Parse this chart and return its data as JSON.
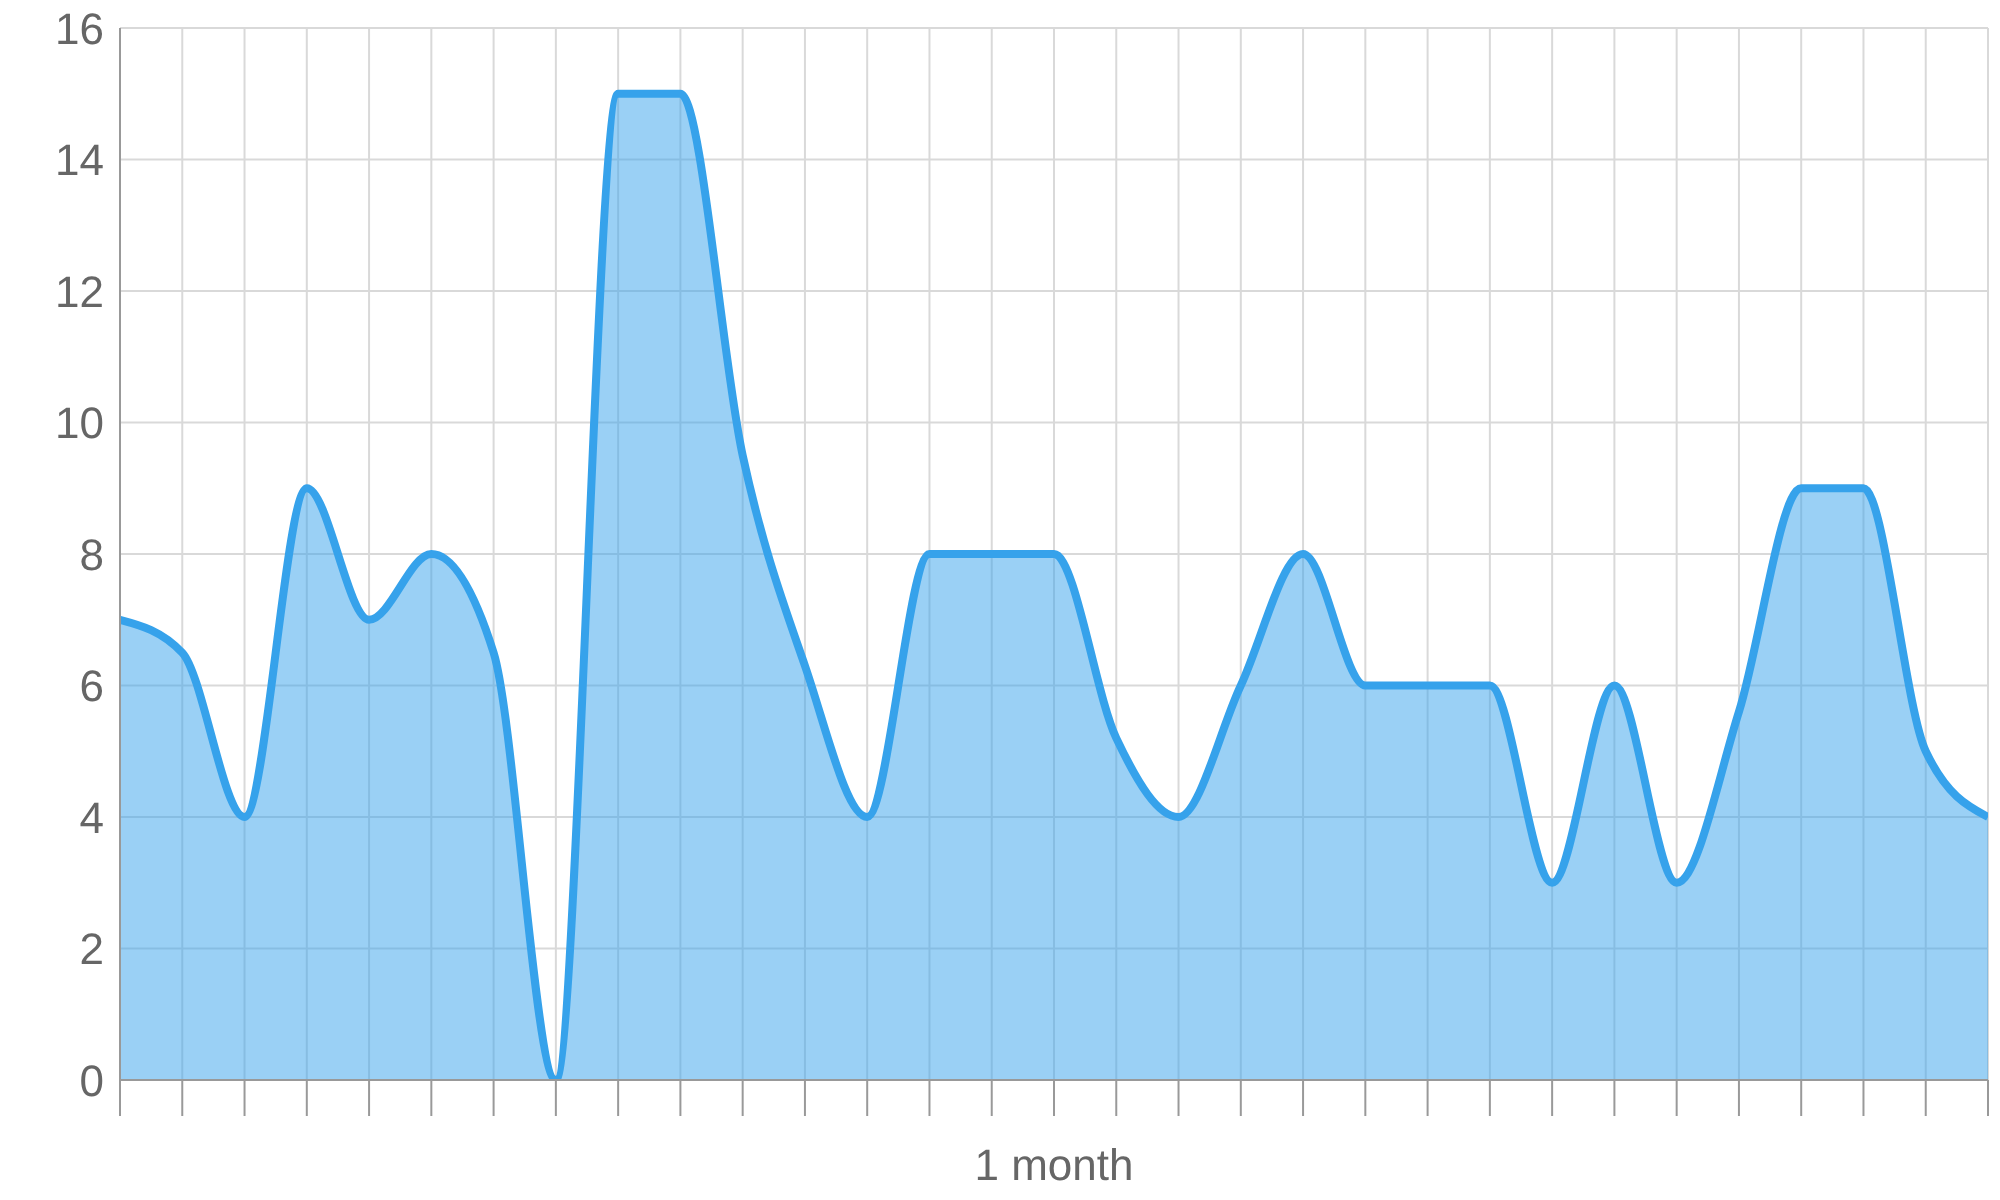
{
  "chart_data": {
    "type": "area",
    "xlabel": "1 month",
    "categories": [
      null,
      null,
      null,
      null,
      null,
      null,
      null,
      null,
      null,
      null,
      null,
      null,
      null,
      null,
      null,
      null,
      null,
      null,
      null,
      null,
      null,
      null,
      null,
      null,
      null,
      null,
      null,
      null,
      null,
      null,
      null
    ],
    "values": [
      7,
      6.5,
      4,
      9,
      7,
      8,
      6.5,
      0,
      15,
      15,
      9.5,
      6.3,
      4,
      8,
      8,
      8,
      5.2,
      4,
      6,
      8,
      6,
      6,
      6,
      3,
      6,
      3,
      5.6,
      9,
      9,
      5,
      4
    ],
    "color": "#36a2eb",
    "ylim": [
      0,
      16
    ],
    "yticks": [
      0,
      2,
      4,
      6,
      8,
      10,
      12,
      14,
      16
    ],
    "grid": true,
    "marker": "none"
  }
}
